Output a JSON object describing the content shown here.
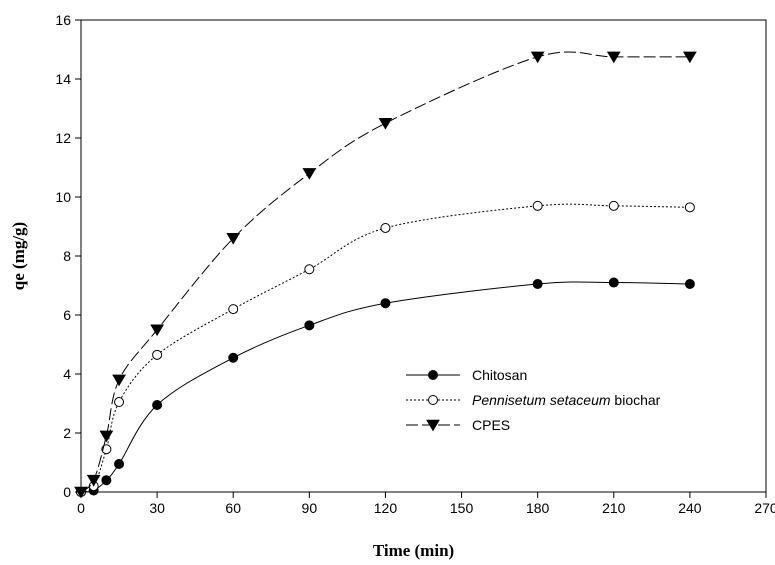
{
  "chart_data": {
    "type": "line",
    "title": "",
    "xlabel": "Time (min)",
    "ylabel": "qe (mg/g)",
    "xlim": [
      0,
      270
    ],
    "ylim": [
      0,
      16
    ],
    "xticks": [
      0,
      30,
      60,
      90,
      120,
      150,
      180,
      210,
      240,
      270
    ],
    "yticks": [
      0,
      2,
      4,
      6,
      8,
      10,
      12,
      14,
      16
    ],
    "grid": false,
    "legend_position": "bottom-right",
    "series": [
      {
        "name": "Chitosan",
        "name_parts": [
          {
            "text": "Chitosan",
            "italic": false
          }
        ],
        "marker": "filled-circle",
        "line_style": "solid",
        "x": [
          0,
          5,
          10,
          15,
          30,
          60,
          90,
          120,
          180,
          210,
          240
        ],
        "y": [
          0,
          0.05,
          0.4,
          0.95,
          2.95,
          4.55,
          5.65,
          6.4,
          7.05,
          7.1,
          7.05
        ]
      },
      {
        "name": "Pennisetum setaceum biochar",
        "name_parts": [
          {
            "text": "Pennisetum setaceum",
            "italic": true
          },
          {
            "text": " biochar",
            "italic": false
          }
        ],
        "marker": "open-circle",
        "line_style": "dotted",
        "x": [
          0,
          5,
          10,
          15,
          30,
          60,
          90,
          120,
          180,
          210,
          240
        ],
        "y": [
          0,
          0.2,
          1.45,
          3.05,
          4.65,
          6.2,
          7.55,
          8.95,
          9.7,
          9.7,
          9.65
        ]
      },
      {
        "name": "CPES",
        "name_parts": [
          {
            "text": "CPES",
            "italic": false
          }
        ],
        "marker": "filled-down-triangle",
        "line_style": "dashed",
        "x": [
          0,
          5,
          10,
          15,
          30,
          60,
          90,
          120,
          180,
          210,
          240
        ],
        "y": [
          0,
          0.4,
          1.9,
          3.8,
          5.5,
          8.6,
          10.8,
          12.5,
          14.75,
          14.75,
          14.75
        ]
      }
    ]
  }
}
